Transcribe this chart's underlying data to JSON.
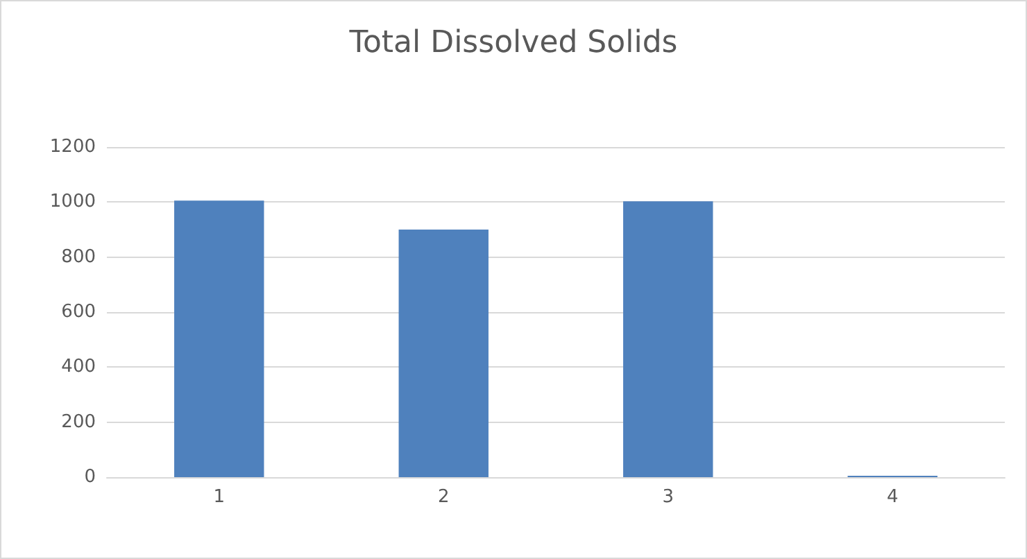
{
  "chart_data": {
    "type": "bar",
    "title": "Total Dissolved Solids",
    "categories": [
      "1",
      "2",
      "3",
      "4"
    ],
    "values": [
      1005,
      900,
      1003,
      5
    ],
    "color": "#4f81bd",
    "ylim": [
      0,
      1200
    ],
    "yticks": [
      0,
      200,
      400,
      600,
      800,
      1000,
      1200
    ],
    "grid": "y"
  }
}
